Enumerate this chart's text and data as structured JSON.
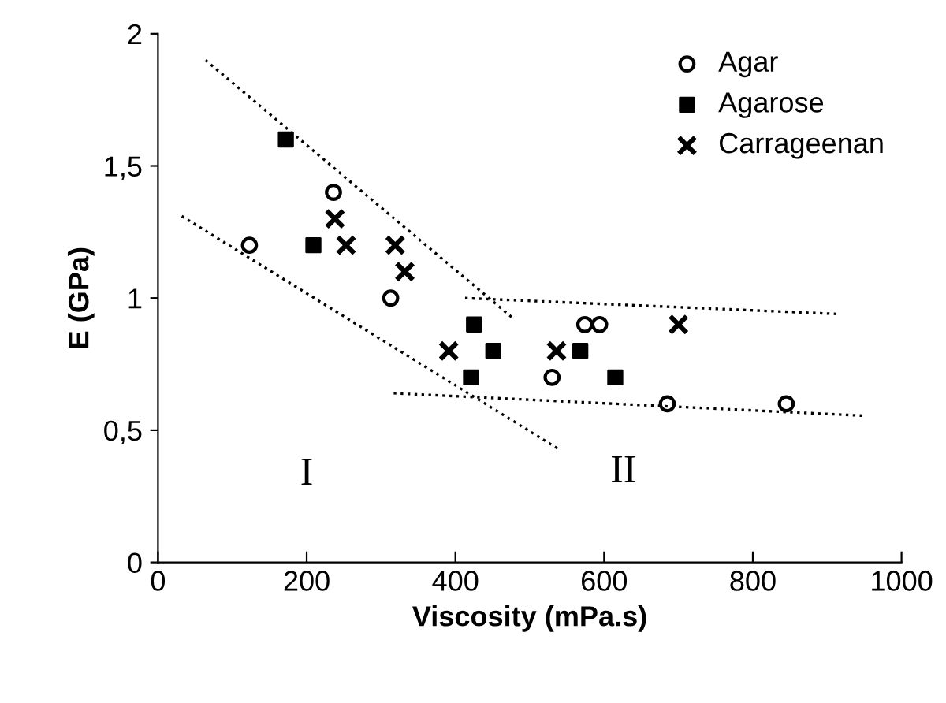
{
  "chart_data": {
    "type": "scatter",
    "xlabel": "Viscosity (mPa.s)",
    "ylabel": "E (GPa)",
    "xlim": [
      0,
      1000
    ],
    "xticks": [
      0,
      200,
      400,
      600,
      800,
      1000
    ],
    "ylim": [
      0,
      2
    ],
    "yticks": [
      0,
      {
        "value": 0.5,
        "label": "0,5"
      },
      1,
      {
        "value": 1.5,
        "label": "1,5"
      },
      2
    ],
    "grid": false,
    "legend": "top right",
    "series": [
      {
        "name": "Agar",
        "color": "#000000",
        "marker": "circle",
        "x": [
          123,
          236,
          313,
          530,
          574,
          594,
          685,
          845
        ],
        "values": [
          1.2,
          1.4,
          1.0,
          0.7,
          0.9,
          0.9,
          0.6,
          0.6
        ]
      },
      {
        "name": "Agarose",
        "color": "#000000",
        "marker": "square",
        "x": [
          172,
          209,
          425,
          421,
          451,
          568,
          615
        ],
        "values": [
          1.6,
          1.2,
          0.9,
          0.7,
          0.8,
          0.8,
          0.7
        ]
      },
      {
        "name": "Carrageenan",
        "color": "#000000",
        "marker": "cross",
        "x": [
          238,
          253,
          319,
          332,
          391,
          536,
          700
        ],
        "values": [
          1.3,
          1.2,
          1.2,
          1.1,
          0.8,
          0.8,
          0.9
        ]
      },
      {
        "type": "line",
        "color": "#000000",
        "marker": "none",
        "line_style": "dotted",
        "x": [
          64,
          479
        ],
        "values": [
          1.9,
          0.92
        ]
      },
      {
        "type": "line",
        "color": "#000000",
        "marker": "none",
        "line_style": "dotted",
        "x": [
          32,
          538
        ],
        "values": [
          1.31,
          0.43
        ]
      },
      {
        "type": "line",
        "color": "#000000",
        "marker": "none",
        "line_style": "dotted",
        "x": [
          413,
          913
        ],
        "values": [
          1.0,
          0.94
        ]
      },
      {
        "type": "line",
        "color": "#000000",
        "marker": "none",
        "line_style": "dotted",
        "x": [
          317,
          949
        ],
        "values": [
          0.64,
          0.555
        ]
      }
    ],
    "annotations": [
      "I",
      "II"
    ]
  }
}
